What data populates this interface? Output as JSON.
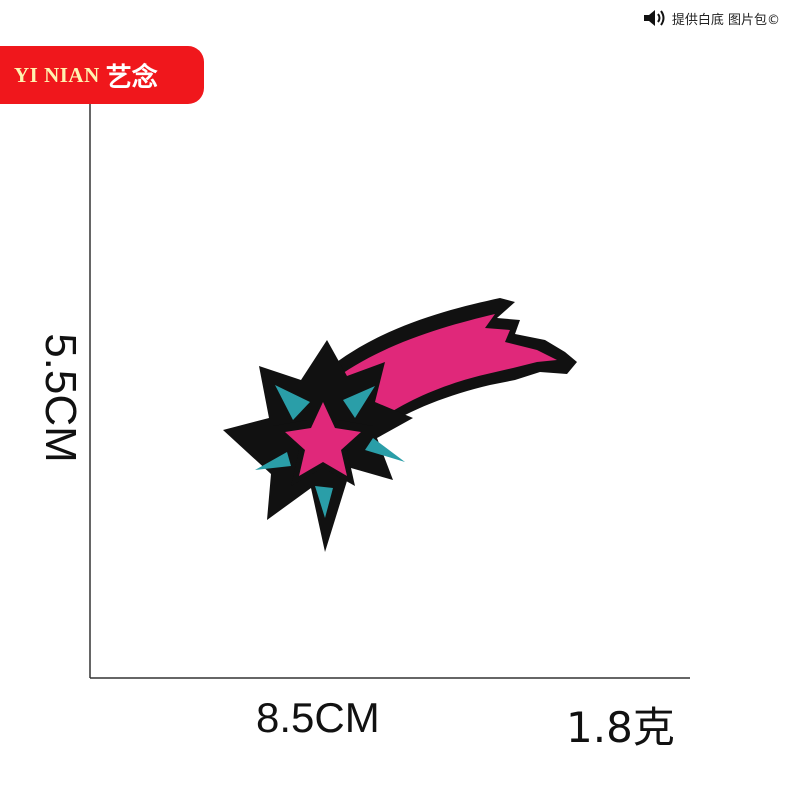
{
  "top_note": {
    "text": "提供白底 图片包©",
    "icon": "speaker-icon"
  },
  "brand": {
    "en": "YI NIAN",
    "cn": "艺念"
  },
  "dimensions": {
    "width_label": "8.5CM",
    "height_label": "5.5CM",
    "weight_label": "1.8克"
  },
  "colors": {
    "brand_red": "#f0171c",
    "patch_pink": "#e0287a",
    "patch_teal": "#2a9ea8",
    "outline": "#111111"
  }
}
